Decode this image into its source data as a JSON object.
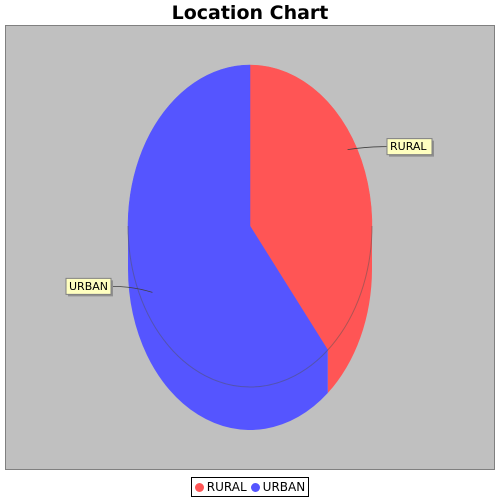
{
  "chart_data": {
    "type": "pie",
    "style": "3d",
    "title": "Location Chart",
    "slices": [
      {
        "label": "RURAL",
        "value": 39,
        "color": "#ff5555"
      },
      {
        "label": "URBAN",
        "value": 61,
        "color": "#5555ff"
      }
    ],
    "background": "#c0c0c0",
    "legend_position": "bottom",
    "label_box_color": "#ffffc0"
  }
}
